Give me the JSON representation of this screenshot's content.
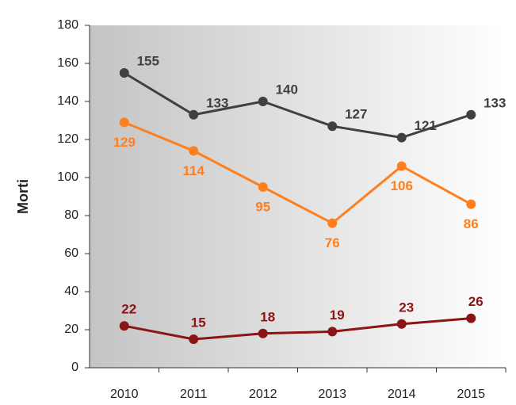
{
  "chart_data": {
    "type": "line",
    "y_label": "Morti",
    "categories": [
      "2010",
      "2011",
      "2012",
      "2013",
      "2014",
      "2015"
    ],
    "series": [
      {
        "color": "#404040",
        "values": [
          155,
          133,
          140,
          127,
          121,
          133
        ]
      },
      {
        "color": "#ff7f1e",
        "values": [
          129,
          114,
          95,
          76,
          106,
          86
        ]
      },
      {
        "color": "#8b1414",
        "values": [
          22,
          15,
          18,
          19,
          23,
          26
        ]
      }
    ],
    "ylim": [
      0,
      180
    ],
    "yticks": [
      0,
      20,
      40,
      60,
      80,
      100,
      120,
      140,
      160,
      180
    ]
  }
}
